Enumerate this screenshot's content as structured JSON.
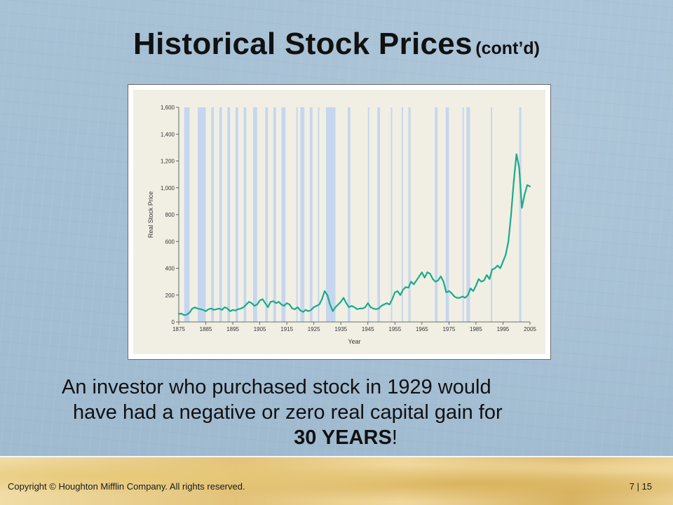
{
  "slide": {
    "title": "Historical Stock Prices",
    "title_suffix": "(cont’d)",
    "body_line1": "An investor who purchased stock in 1929 would",
    "body_line2": "have had a negative or zero real capital gain for",
    "body_emphasis": "30 YEARS",
    "body_end": "!",
    "copyright": "Copyright © Houghton Mifflin Company. All rights reserved.",
    "page_number": "7 | 15"
  },
  "colors": {
    "line": "#1aab8a",
    "recession_band": "#c6d6ef",
    "plot_bg": "#f1efe4"
  },
  "chart_data": {
    "type": "line",
    "title": "",
    "xlabel": "Year",
    "ylabel": "Real Stock Price",
    "xlim": [
      1875,
      2005
    ],
    "ylim": [
      0,
      1600
    ],
    "xticks": [
      "1875",
      "1885",
      "1895",
      "1905",
      "1915",
      "1925",
      "1935",
      "1945",
      "1955",
      "1965",
      "1975",
      "1985",
      "1995",
      "2005"
    ],
    "yticks": [
      "0",
      "200",
      "400",
      "600",
      "800",
      "1,000",
      "1,200",
      "1,400",
      "1,600"
    ],
    "shaded_periods": [
      [
        1877.0,
        1879.0
      ],
      [
        1882.0,
        1885.0
      ],
      [
        1887.0,
        1888.0
      ],
      [
        1890.0,
        1891.0
      ],
      [
        1893.0,
        1894.0
      ],
      [
        1896.0,
        1897.0
      ],
      [
        1899.0,
        1900.0
      ],
      [
        1902.5,
        1904.0
      ],
      [
        1907.0,
        1908.0
      ],
      [
        1910.0,
        1911.0
      ],
      [
        1913.0,
        1914.5
      ],
      [
        1918.5,
        1919.0
      ],
      [
        1920.0,
        1921.5
      ],
      [
        1923.5,
        1924.5
      ],
      [
        1926.5,
        1927.0
      ],
      [
        1929.5,
        1933.0
      ],
      [
        1937.5,
        1938.5
      ],
      [
        1945.0,
        1945.5
      ],
      [
        1948.5,
        1949.5
      ],
      [
        1953.5,
        1954.0
      ],
      [
        1957.5,
        1958.0
      ],
      [
        1960.0,
        1960.8
      ],
      [
        1969.8,
        1970.8
      ],
      [
        1973.8,
        1975.0
      ],
      [
        1980.0,
        1980.5
      ],
      [
        1981.5,
        1982.8
      ],
      [
        1990.5,
        1991.0
      ],
      [
        2001.0,
        2001.8
      ]
    ],
    "series": [
      {
        "x": [
          1875,
          1876,
          1877,
          1878,
          1879,
          1880,
          1881,
          1882,
          1883,
          1884,
          1885,
          1886,
          1887,
          1888,
          1889,
          1890,
          1891,
          1892,
          1893,
          1894,
          1895,
          1896,
          1897,
          1898,
          1899,
          1900,
          1901,
          1902,
          1903,
          1904,
          1905,
          1906,
          1907,
          1908,
          1909,
          1910,
          1911,
          1912,
          1913,
          1914,
          1915,
          1916,
          1917,
          1918,
          1919,
          1920,
          1921,
          1922,
          1923,
          1924,
          1925,
          1926,
          1927,
          1928,
          1929,
          1930,
          1931,
          1932,
          1933,
          1934,
          1935,
          1936,
          1937,
          1938,
          1939,
          1940,
          1941,
          1942,
          1943,
          1944,
          1945,
          1946,
          1947,
          1948,
          1949,
          1950,
          1951,
          1952,
          1953,
          1954,
          1955,
          1956,
          1957,
          1958,
          1959,
          1960,
          1961,
          1962,
          1963,
          1964,
          1965,
          1966,
          1967,
          1968,
          1969,
          1970,
          1971,
          1972,
          1973,
          1974,
          1975,
          1976,
          1977,
          1978,
          1979,
          1980,
          1981,
          1982,
          1983,
          1984,
          1985,
          1986,
          1987,
          1988,
          1989,
          1990,
          1991,
          1992,
          1993,
          1994,
          1995,
          1996,
          1997,
          1998,
          1999,
          2000,
          2001,
          2002,
          2003,
          2004,
          2005
        ],
        "y": [
          60,
          62,
          50,
          55,
          70,
          100,
          108,
          100,
          95,
          90,
          80,
          95,
          100,
          90,
          95,
          100,
          90,
          110,
          100,
          80,
          90,
          85,
          95,
          100,
          110,
          130,
          150,
          140,
          120,
          130,
          160,
          170,
          140,
          110,
          150,
          155,
          140,
          150,
          130,
          120,
          140,
          130,
          100,
          95,
          110,
          85,
          75,
          90,
          80,
          90,
          110,
          120,
          130,
          170,
          230,
          200,
          130,
          80,
          110,
          130,
          150,
          180,
          140,
          110,
          120,
          110,
          95,
          100,
          100,
          110,
          140,
          110,
          100,
          95,
          100,
          120,
          130,
          140,
          130,
          170,
          220,
          230,
          200,
          240,
          260,
          255,
          300,
          280,
          310,
          340,
          370,
          330,
          370,
          360,
          320,
          300,
          310,
          340,
          300,
          220,
          230,
          215,
          190,
          180,
          180,
          190,
          180,
          200,
          250,
          230,
          270,
          320,
          300,
          310,
          350,
          320,
          390,
          400,
          420,
          400,
          450,
          500,
          600,
          800,
          1050,
          1250,
          1150,
          850,
          950,
          1020,
          1010
        ]
      }
    ]
  }
}
